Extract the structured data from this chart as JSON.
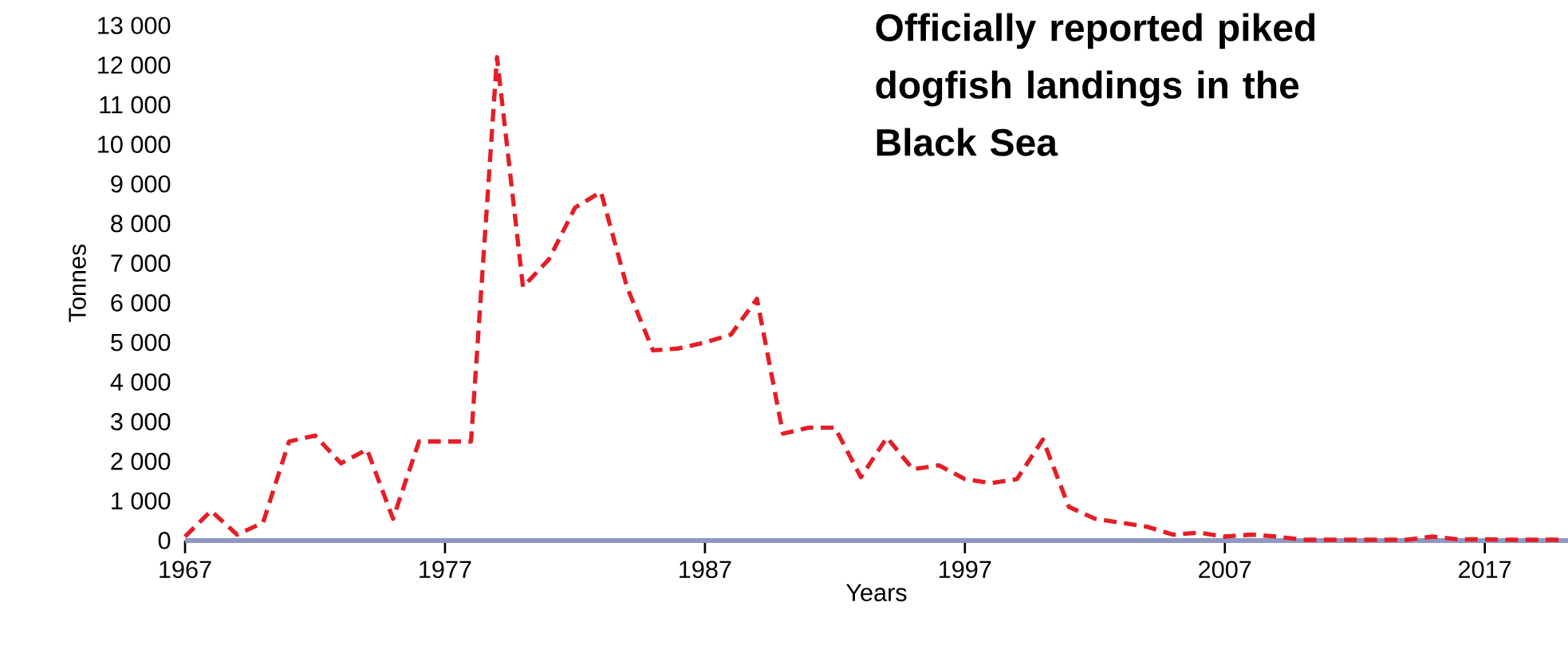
{
  "chart_data": {
    "type": "line",
    "title": "Officially reported piked dogfish landings in the Black Sea",
    "xlabel": "Years",
    "ylabel": "Tonnes",
    "x": [
      1967,
      1968,
      1969,
      1970,
      1971,
      1972,
      1973,
      1974,
      1975,
      1976,
      1977,
      1978,
      1979,
      1980,
      1981,
      1982,
      1983,
      1984,
      1985,
      1986,
      1987,
      1988,
      1989,
      1990,
      1991,
      1992,
      1993,
      1994,
      1995,
      1996,
      1997,
      1998,
      1999,
      2000,
      2001,
      2002,
      2003,
      2004,
      2005,
      2006,
      2007,
      2008,
      2009,
      2010,
      2011,
      2012,
      2013,
      2014,
      2015,
      2016,
      2017,
      2018,
      2019,
      2020
    ],
    "series": [
      {
        "color": "#e41e26",
        "values": [
          100,
          750,
          150,
          450,
          2500,
          2650,
          1950,
          2300,
          550,
          2500,
          2500,
          2500,
          12200,
          6400,
          7100,
          8400,
          8800,
          6400,
          4800,
          4850,
          5000,
          5200,
          6100,
          2700,
          2850,
          2850,
          1600,
          2600,
          1800,
          1900,
          1550,
          1450,
          1550,
          2550,
          850,
          550,
          450,
          350,
          150,
          200,
          100,
          150,
          100,
          20,
          20,
          20,
          20,
          20,
          100,
          30,
          30,
          20,
          20,
          20
        ]
      }
    ],
    "xlim": [
      1967,
      2020.2
    ],
    "ylim": [
      0,
      13000
    ],
    "xticks": [
      1967,
      1977,
      1987,
      1997,
      2007,
      2017
    ],
    "yticks": [
      0,
      {
        "value": 1000,
        "label": "1 000"
      },
      {
        "value": 2000,
        "label": "2 000"
      },
      {
        "value": 3000,
        "label": "3 000"
      },
      {
        "value": 4000,
        "label": "4 000"
      },
      {
        "value": 5000,
        "label": "5 000"
      },
      {
        "value": 6000,
        "label": "6 000"
      },
      {
        "value": 7000,
        "label": "7 000"
      },
      {
        "value": 8000,
        "label": "8 000"
      },
      {
        "value": 9000,
        "label": "9 000"
      },
      {
        "value": 10000,
        "label": "10 000"
      },
      {
        "value": 11000,
        "label": "11 000"
      },
      {
        "value": 12000,
        "label": "12 000"
      },
      {
        "value": 13000,
        "label": "13 000"
      }
    ],
    "grid": false,
    "marker": "none",
    "line_style": "dashed"
  }
}
